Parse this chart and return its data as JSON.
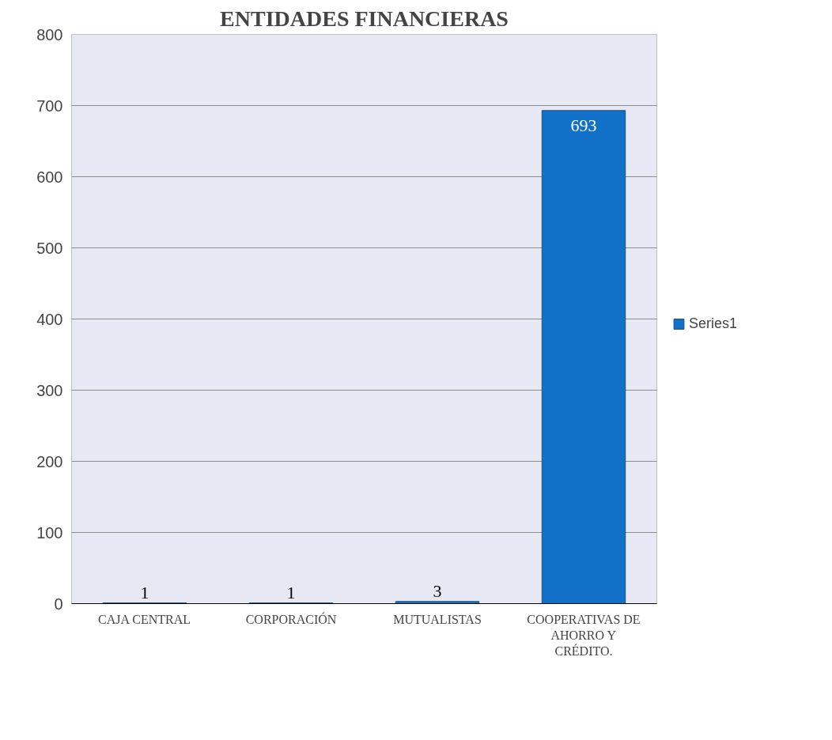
{
  "chart_data": {
    "type": "bar",
    "title": "ENTIDADES FINANCIERAS",
    "categories": [
      "CAJA CENTRAL",
      "CORPORACIÓN",
      "MUTUALISTAS",
      "COOPERATIVAS DE AHORRO Y CRÉDITO."
    ],
    "series": [
      {
        "name": "Series1",
        "color": "#1170c8",
        "values": [
          1,
          1,
          3,
          693
        ]
      }
    ],
    "ylim": [
      0,
      800
    ],
    "yticks": [
      0,
      100,
      200,
      300,
      400,
      500,
      600,
      700,
      800
    ],
    "grid": "y",
    "legend": "right",
    "data_labels": true
  }
}
